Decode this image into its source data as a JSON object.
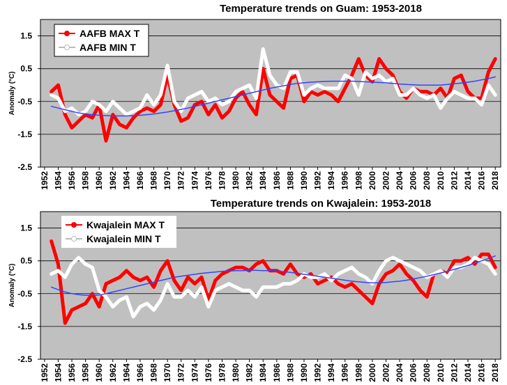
{
  "chart_data": [
    {
      "type": "line",
      "title": "Temperature trends on Guam: 1953-2018",
      "y_label": "Anomaly (°C)",
      "x": [
        1953,
        1954,
        1955,
        1956,
        1957,
        1958,
        1959,
        1960,
        1961,
        1962,
        1963,
        1964,
        1965,
        1966,
        1967,
        1968,
        1969,
        1970,
        1971,
        1972,
        1973,
        1974,
        1975,
        1976,
        1977,
        1978,
        1979,
        1980,
        1981,
        1982,
        1983,
        1984,
        1985,
        1986,
        1987,
        1988,
        1989,
        1990,
        1991,
        1992,
        1993,
        1994,
        1995,
        1996,
        1997,
        1998,
        1999,
        2000,
        2001,
        2002,
        2003,
        2004,
        2005,
        2006,
        2007,
        2008,
        2009,
        2010,
        2011,
        2012,
        2013,
        2014,
        2015,
        2016,
        2017,
        2018
      ],
      "series": [
        {
          "name": "AAFB MAX T",
          "color": "#ff0000",
          "values": [
            -0.2,
            0.0,
            -0.9,
            -1.3,
            -1.1,
            -0.9,
            -1.0,
            -0.6,
            -1.7,
            -0.9,
            -1.2,
            -1.3,
            -1.0,
            -0.8,
            -0.7,
            -0.8,
            -0.6,
            0.3,
            -0.6,
            -1.1,
            -1.0,
            -0.6,
            -0.5,
            -0.9,
            -0.6,
            -1.0,
            -0.8,
            -0.4,
            -0.2,
            -0.6,
            -0.9,
            0.5,
            -0.3,
            -0.5,
            -0.7,
            0.2,
            0.3,
            -0.5,
            -0.2,
            -0.3,
            -0.2,
            -0.3,
            -0.5,
            -0.1,
            0.3,
            0.8,
            0.3,
            0.1,
            0.8,
            0.5,
            0.3,
            -0.2,
            -0.4,
            -0.1,
            -0.2,
            -0.2,
            -0.3,
            -0.1,
            -0.4,
            0.2,
            0.3,
            -0.2,
            -0.4,
            -0.4,
            0.4,
            0.8
          ]
        },
        {
          "name": "AAFB MIN T",
          "color": "#ffffff",
          "values": [
            -0.3,
            -0.4,
            -0.8,
            -0.7,
            -0.9,
            -0.8,
            -0.5,
            -0.6,
            -0.8,
            -0.5,
            -0.7,
            -0.9,
            -0.8,
            -0.7,
            -0.3,
            -0.6,
            -0.3,
            0.6,
            -0.5,
            -0.8,
            -0.4,
            -0.3,
            -0.2,
            -0.5,
            -0.4,
            -0.6,
            -0.5,
            -0.2,
            -0.1,
            0.0,
            -0.4,
            1.1,
            0.3,
            0.0,
            -0.1,
            0.4,
            0.4,
            -0.3,
            -0.1,
            0.0,
            -0.1,
            -0.1,
            -0.1,
            0.3,
            0.2,
            -0.3,
            0.4,
            0.2,
            0.3,
            0.1,
            0.2,
            -0.3,
            -0.3,
            -0.1,
            -0.3,
            -0.4,
            -0.3,
            -0.7,
            -0.4,
            -0.2,
            -0.3,
            -0.4,
            -0.4,
            -0.6,
            0.0,
            -0.3
          ]
        },
        {
          "color": "#3344ff",
          "values": [
            -0.65,
            -0.7,
            -0.75,
            -0.8,
            -0.85,
            -0.88,
            -0.9,
            -0.92,
            -0.93,
            -0.94,
            -0.94,
            -0.94,
            -0.93,
            -0.92,
            -0.9,
            -0.88,
            -0.85,
            -0.82,
            -0.78,
            -0.74,
            -0.7,
            -0.65,
            -0.6,
            -0.55,
            -0.5,
            -0.45,
            -0.4,
            -0.35,
            -0.3,
            -0.25,
            -0.2,
            -0.15,
            -0.1,
            -0.06,
            -0.02,
            0.02,
            0.05,
            0.07,
            0.09,
            0.1,
            0.11,
            0.12,
            0.12,
            0.12,
            0.12,
            0.11,
            0.1,
            0.09,
            0.08,
            0.07,
            0.05,
            0.03,
            0.02,
            0.01,
            0.0,
            0.0,
            0.0,
            0.0,
            0.02,
            0.04,
            0.06,
            0.09,
            0.12,
            0.16,
            0.2,
            0.25
          ]
        }
      ],
      "xlim": [
        1951.4,
        2018.8
      ],
      "xticks": [
        1952,
        1954,
        1956,
        1958,
        1960,
        1962,
        1964,
        1966,
        1968,
        1970,
        1972,
        1974,
        1976,
        1978,
        1980,
        1982,
        1984,
        1986,
        1988,
        1990,
        1992,
        1994,
        1996,
        1998,
        2000,
        2002,
        2004,
        2006,
        2008,
        2010,
        2012,
        2014,
        2016,
        2018
      ],
      "ylim": [
        -2.5,
        2.0
      ],
      "yticks": [
        1.5,
        0.5,
        -0.5,
        -1.5,
        -2.5
      ],
      "grid": true,
      "legend": "upper left"
    },
    {
      "type": "line",
      "title": "Temperature trends on Kwajalein: 1953-2018",
      "y_label": "Anomaly (°C)",
      "x": [
        1953,
        1954,
        1955,
        1956,
        1957,
        1958,
        1959,
        1960,
        1961,
        1962,
        1963,
        1964,
        1965,
        1966,
        1967,
        1968,
        1969,
        1970,
        1971,
        1972,
        1973,
        1974,
        1975,
        1976,
        1977,
        1978,
        1979,
        1980,
        1981,
        1982,
        1983,
        1984,
        1985,
        1986,
        1987,
        1988,
        1989,
        1990,
        1991,
        1992,
        1993,
        1994,
        1995,
        1996,
        1997,
        1998,
        1999,
        2000,
        2001,
        2002,
        2003,
        2004,
        2005,
        2006,
        2007,
        2008,
        2009,
        2010,
        2011,
        2012,
        2013,
        2014,
        2015,
        2016,
        2017,
        2018
      ],
      "series": [
        {
          "name": "Kwajalein MAX T",
          "color": "#ff0000",
          "values": [
            1.1,
            0.4,
            -1.4,
            -1.0,
            -0.9,
            -0.8,
            -0.5,
            -0.9,
            -0.2,
            -0.1,
            0.0,
            0.2,
            0.0,
            -0.1,
            0.0,
            -0.3,
            0.2,
            0.5,
            -0.1,
            -0.4,
            0.0,
            -0.2,
            0.0,
            -0.7,
            -0.1,
            0.1,
            0.2,
            0.3,
            0.3,
            0.2,
            0.4,
            0.5,
            0.2,
            0.2,
            0.1,
            0.4,
            0.1,
            0.0,
            0.1,
            -0.2,
            -0.1,
            0.0,
            -0.2,
            -0.3,
            -0.2,
            -0.4,
            -0.6,
            -0.8,
            -0.2,
            0.1,
            0.2,
            0.4,
            0.1,
            -0.1,
            -0.4,
            -0.6,
            0.1,
            0.2,
            0.1,
            0.5,
            0.5,
            0.6,
            0.4,
            0.7,
            0.7,
            0.3
          ]
        },
        {
          "name": "Kwajalein MIN T",
          "color": "#ffffff",
          "values": [
            0.1,
            0.2,
            0.0,
            0.4,
            0.6,
            0.4,
            0.3,
            -0.4,
            -0.6,
            -0.9,
            -0.7,
            -0.6,
            -1.2,
            -0.9,
            -0.8,
            -1.0,
            -0.7,
            -0.2,
            -0.6,
            -0.6,
            -0.4,
            -0.6,
            -0.3,
            -0.9,
            -0.4,
            -0.3,
            -0.2,
            -0.3,
            -0.4,
            -0.4,
            -0.6,
            -0.3,
            -0.3,
            -0.3,
            -0.2,
            -0.2,
            -0.1,
            0.1,
            0.0,
            0.0,
            0.1,
            -0.1,
            0.1,
            0.2,
            0.3,
            0.1,
            0.0,
            -0.2,
            0.2,
            0.5,
            0.6,
            0.5,
            0.4,
            0.3,
            0.2,
            0.0,
            0.1,
            0.2,
            0.0,
            0.3,
            0.3,
            0.4,
            0.6,
            0.5,
            0.4,
            0.1
          ]
        },
        {
          "color": "#3344ff",
          "values": [
            -0.3,
            -0.38,
            -0.45,
            -0.5,
            -0.53,
            -0.55,
            -0.55,
            -0.54,
            -0.5,
            -0.45,
            -0.4,
            -0.35,
            -0.3,
            -0.25,
            -0.2,
            -0.15,
            -0.1,
            -0.05,
            0.0,
            0.03,
            0.06,
            0.09,
            0.12,
            0.14,
            0.16,
            0.18,
            0.19,
            0.2,
            0.2,
            0.21,
            0.21,
            0.2,
            0.2,
            0.19,
            0.17,
            0.15,
            0.12,
            0.09,
            0.06,
            0.03,
            0.0,
            -0.03,
            -0.06,
            -0.09,
            -0.12,
            -0.14,
            -0.16,
            -0.17,
            -0.17,
            -0.16,
            -0.14,
            -0.12,
            -0.09,
            -0.05,
            -0.01,
            0.03,
            0.08,
            0.13,
            0.18,
            0.24,
            0.3,
            0.36,
            0.43,
            0.5,
            0.57,
            0.65
          ]
        }
      ],
      "xlim": [
        1951.4,
        2018.8
      ],
      "xticks": [
        1952,
        1954,
        1956,
        1958,
        1960,
        1962,
        1964,
        1966,
        1968,
        1970,
        1972,
        1974,
        1976,
        1978,
        1980,
        1982,
        1984,
        1986,
        1988,
        1990,
        1992,
        1994,
        1996,
        1998,
        2000,
        2002,
        2004,
        2006,
        2008,
        2010,
        2012,
        2014,
        2016,
        2018
      ],
      "ylim": [
        -2.5,
        2.0
      ],
      "yticks": [
        1.5,
        0.5,
        -0.5,
        -1.5,
        -2.5
      ],
      "grid": true,
      "legend": "upper left"
    }
  ]
}
